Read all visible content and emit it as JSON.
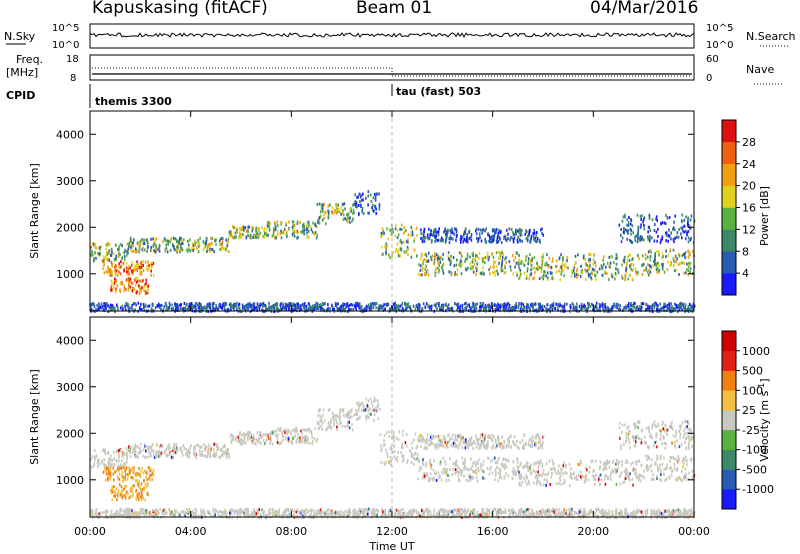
{
  "header": {
    "station": "Kapuskasing (fitACF)",
    "beam": "Beam 01",
    "date": "04/Mar/2016"
  },
  "strip_labels": {
    "nsky": "N.Sky",
    "nsearch": "N.Search",
    "freq_top": "Freq.",
    "freq_unit": "[MHz]",
    "nave": "Nave",
    "cpid": "CPID",
    "nsky_tick_hi": "10^5",
    "nsky_tick_lo": "10^0",
    "freq_tick_hi": "18",
    "freq_tick_lo": "8",
    "nave_tick_hi": "60",
    "nave_tick_lo": "0"
  },
  "cpid_segments": [
    {
      "label": "themis 3300",
      "start_hour": 0
    },
    {
      "label": "tau (fast) 503",
      "start_hour": 12
    }
  ],
  "chart_data": [
    {
      "type": "heatmap",
      "title": "",
      "parameter": "Power",
      "ylabel": "Slant Range [km]",
      "ylim": [
        200,
        4500
      ],
      "yticks": [
        1000,
        2000,
        3000,
        4000
      ],
      "colorbar": {
        "label": "Power [dB]",
        "ticks": [
          "4",
          "8",
          "12",
          "16",
          "20",
          "24",
          "28"
        ],
        "range": [
          0,
          32
        ],
        "colors": [
          "#1a1aff",
          "#2a5bb0",
          "#3a8a6a",
          "#5ab040",
          "#e0d020",
          "#f0a010",
          "#f06010",
          "#e01010"
        ]
      }
    },
    {
      "type": "heatmap",
      "title": "",
      "parameter": "Velocity",
      "ylabel": "Slant Range [km]",
      "ylim": [
        200,
        4500
      ],
      "yticks": [
        1000,
        2000,
        3000,
        4000
      ],
      "colorbar": {
        "label": "Velocity [m s",
        "label_sup": "-1",
        "label_end": "]",
        "ticks": [
          "1000",
          "500",
          "100",
          "25",
          "-25",
          "-100",
          "-500",
          "-1000"
        ],
        "colors": [
          "#1a1aff",
          "#2a5bb0",
          "#3a8a6a",
          "#5ab040",
          "#c8c8c0",
          "#f0c040",
          "#f08010",
          "#e02010",
          "#d00000"
        ]
      }
    }
  ],
  "time_axis": {
    "xlabel": "Time UT",
    "xlim_hours": [
      0,
      24
    ],
    "ticks": [
      "00:00",
      "04:00",
      "08:00",
      "12:00",
      "16:00",
      "20:00",
      "00:00"
    ],
    "tick_hours": [
      0,
      4,
      8,
      12,
      16,
      20,
      24
    ]
  },
  "scatter_bands": [
    {
      "t0": 0.0,
      "t1": 1.5,
      "r0": 1300,
      "r1": 1700,
      "kind": "mid"
    },
    {
      "t0": 0.5,
      "t1": 2.5,
      "r0": 1000,
      "r1": 1300,
      "kind": "strong"
    },
    {
      "t0": 0.8,
      "t1": 2.3,
      "r0": 600,
      "r1": 950,
      "kind": "strong"
    },
    {
      "t0": 1.5,
      "t1": 5.5,
      "r0": 1500,
      "r1": 1800,
      "kind": "mid"
    },
    {
      "t0": 5.5,
      "t1": 7.0,
      "r0": 1800,
      "r1": 2050,
      "kind": "mid"
    },
    {
      "t0": 7.0,
      "t1": 9.0,
      "r0": 1800,
      "r1": 2150,
      "kind": "mid"
    },
    {
      "t0": 9.0,
      "t1": 10.5,
      "r0": 2100,
      "r1": 2550,
      "kind": "mid"
    },
    {
      "t0": 10.5,
      "t1": 11.5,
      "r0": 2300,
      "r1": 2800,
      "kind": "weak"
    },
    {
      "t0": 11.5,
      "t1": 13.0,
      "r0": 1350,
      "r1": 2100,
      "kind": "mid"
    },
    {
      "t0": 13.0,
      "t1": 17.0,
      "r0": 1000,
      "r1": 1500,
      "kind": "mid"
    },
    {
      "t0": 17.0,
      "t1": 22.0,
      "r0": 900,
      "r1": 1450,
      "kind": "mid"
    },
    {
      "t0": 22.0,
      "t1": 24.0,
      "r0": 1000,
      "r1": 1550,
      "kind": "mid"
    },
    {
      "t0": 13.0,
      "t1": 18.0,
      "r0": 1700,
      "r1": 2000,
      "kind": "weak"
    },
    {
      "t0": 21.0,
      "t1": 24.0,
      "r0": 1700,
      "r1": 2300,
      "kind": "weak"
    },
    {
      "t0": 0.0,
      "t1": 24.0,
      "r0": 220,
      "r1": 400,
      "kind": "weak"
    }
  ]
}
